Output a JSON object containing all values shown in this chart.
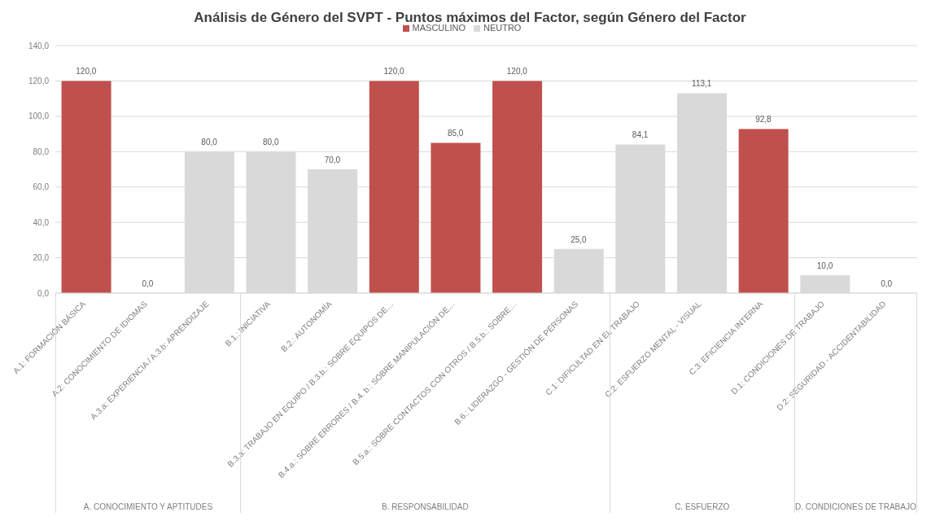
{
  "chart_data": {
    "type": "bar",
    "title": "Análisis de Género del SVPT - Puntos máximos del Factor, según Género del Factor",
    "categories": [
      "A.1: FORMACIÓN BÁSICA",
      "A.2: CONOCIMIENTO DE IDIOMAS",
      "A.3.a: EXPERIENCIA / A.3.b: APRENDIZAJE",
      "B.1.: INICIATIVA",
      "B.2.: AUTONOMÍA",
      "B.3.a: TRABAJO EN EQUIPO / B.3.b.: SOBRE EQUIPOS DE…",
      "B.4.a.: SOBRE ERRORES / B.4. b.: SOBRE MANIPULACIÓN DE…",
      "B.5.a.: SOBRE CONTACTOS CON OTROS / B.5.b.: SOBRE…",
      "B.6.: LIDERAZGO - GESTIÓN DE PERSONAS",
      "C.1: DIFICULTAD EN EL TRABAJO",
      "C.2: ESFUERZO MENTAL - VISUAL",
      "C.3: EFICIENCIA INTERNA",
      "D.1: CONDICIONES DE TRABAJO",
      "D.2: SEGURIDAD - ACCIDENTABILIDAD"
    ],
    "series": [
      {
        "name": "MASCULINO",
        "color": "#c0504d",
        "values": [
          120,
          null,
          null,
          null,
          null,
          120,
          85,
          120,
          null,
          null,
          null,
          92.8,
          null,
          null
        ],
        "value_labels": [
          "120,0",
          null,
          null,
          null,
          null,
          "120,0",
          "85,0",
          "120,0",
          null,
          null,
          null,
          "92,8",
          null,
          null
        ]
      },
      {
        "name": "NEUTRO",
        "color": "#d9d9d9",
        "values": [
          null,
          0,
          80,
          80,
          70,
          null,
          null,
          null,
          25,
          84.1,
          113.1,
          null,
          10,
          0
        ],
        "value_labels": [
          null,
          "0,0",
          "80,0",
          "80,0",
          "70,0",
          null,
          null,
          null,
          "25,0",
          "84,1",
          "113,1",
          null,
          "10,0",
          "0,0"
        ]
      }
    ],
    "stacked": true,
    "ylim": [
      0,
      140
    ],
    "yticks": [
      {
        "value": 0,
        "label": "0,0"
      },
      {
        "value": 20,
        "label": "20,0"
      },
      {
        "value": 40,
        "label": "40,0"
      },
      {
        "value": 60,
        "label": "60,0"
      },
      {
        "value": 80,
        "label": "80,0"
      },
      {
        "value": 100,
        "label": "100,0"
      },
      {
        "value": 120,
        "label": "120,0"
      },
      {
        "value": 140,
        "label": "140,0"
      }
    ],
    "grid": "y",
    "legend": "top",
    "annotations": [
      "A. CONOCIMIENTO Y APTITUDES",
      "B. RESPONSABILIDAD",
      "C. ESFUERZO",
      "D. CONDICIONES DE TRABAJO"
    ]
  }
}
